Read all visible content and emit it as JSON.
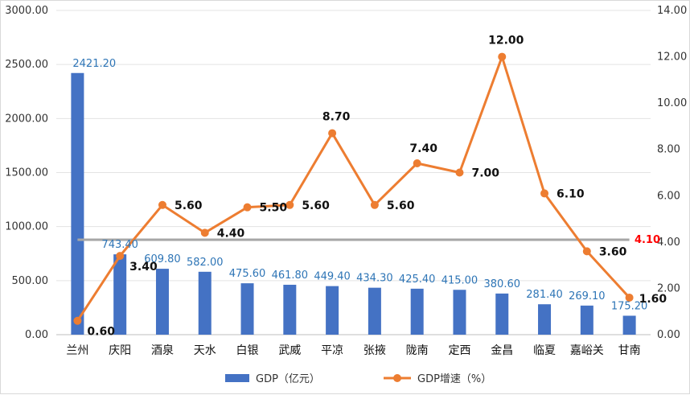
{
  "chart_data": {
    "type": "bar",
    "categories": [
      "兰州",
      "庆阳",
      "酒泉",
      "天水",
      "白银",
      "武威",
      "平凉",
      "张掖",
      "陇南",
      "定西",
      "金昌",
      "临夏",
      "嘉峪关",
      "甘南"
    ],
    "series": [
      {
        "name": "GDP（亿元）",
        "type": "bar",
        "axis": "left",
        "values": [
          2421.2,
          743.4,
          609.8,
          582.0,
          475.6,
          461.8,
          449.4,
          434.3,
          425.4,
          415.0,
          380.6,
          281.4,
          269.1,
          175.2
        ],
        "labels": [
          "2421.20",
          "743.40",
          "609.80",
          "582.00",
          "475.60",
          "461.80",
          "449.40",
          "434.30",
          "425.40",
          "415.00",
          "380.60",
          "281.40",
          "269.10",
          "175.20"
        ],
        "color": "#4472c4"
      },
      {
        "name": "GDP增速（%）",
        "type": "line",
        "axis": "right",
        "values": [
          0.6,
          3.4,
          5.6,
          4.4,
          5.5,
          5.6,
          8.7,
          5.6,
          7.4,
          7.0,
          12.0,
          6.1,
          3.6,
          1.6
        ],
        "labels": [
          "0.60",
          "3.40",
          "5.60",
          "4.40",
          "5.50",
          "5.60",
          "8.70",
          "5.60",
          "7.40",
          "7.00",
          "12.00",
          "6.10",
          "3.60",
          "1.60"
        ],
        "color": "#ed7d31"
      }
    ],
    "reference_line": {
      "value": 4.1,
      "label": "4.10",
      "axis": "right",
      "color": "#a6a6a6",
      "label_color": "#ff0000"
    },
    "y_left": {
      "ylim": [
        0,
        3000
      ],
      "ticks": [
        "0.00",
        "500.00",
        "1000.00",
        "1500.00",
        "2000.00",
        "2500.00",
        "3000.00"
      ]
    },
    "y_right": {
      "ylim": [
        0,
        14
      ],
      "ticks": [
        "0.00",
        "2.00",
        "4.00",
        "6.00",
        "8.00",
        "10.00",
        "12.00",
        "14.00"
      ]
    },
    "grid": true,
    "legend": {
      "position": "bottom",
      "items": [
        "GDP（亿元）",
        "GDP增速（%）"
      ]
    }
  }
}
